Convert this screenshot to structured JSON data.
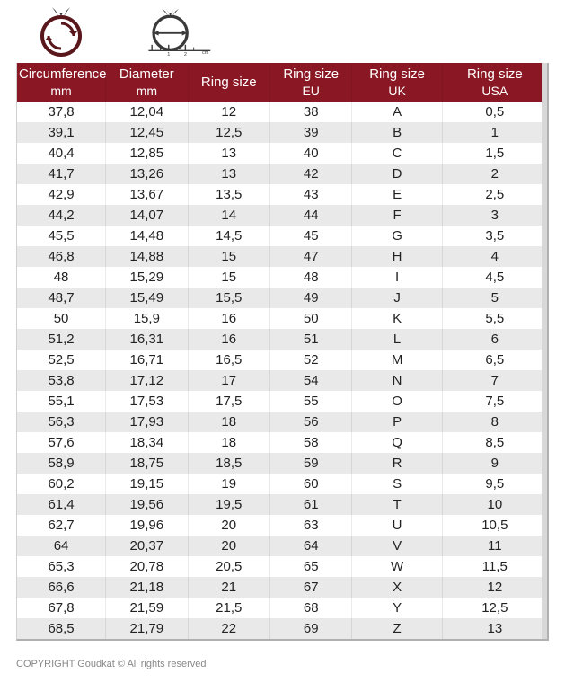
{
  "header": {
    "columns": [
      {
        "line1": "Circumference",
        "line2": "mm"
      },
      {
        "line1": "Diameter",
        "line2": "mm"
      },
      {
        "line1": "Ring size",
        "line2": ""
      },
      {
        "line1": "Ring size",
        "line2": "EU"
      },
      {
        "line1": "Ring size",
        "line2": "UK"
      },
      {
        "line1": "Ring size",
        "line2": "USA"
      }
    ],
    "bg_color": "#8a1824",
    "text_color": "#ffffff"
  },
  "stripe_colors": {
    "odd": "#ffffff",
    "even": "#e9e9e9"
  },
  "rows": [
    {
      "circ": "37,8",
      "diam": "12,04",
      "size": "12",
      "eu": "38",
      "uk": "A",
      "usa": "0,5"
    },
    {
      "circ": "39,1",
      "diam": "12,45",
      "size": "12,5",
      "eu": "39",
      "uk": "B",
      "usa": "1"
    },
    {
      "circ": "40,4",
      "diam": "12,85",
      "size": "13",
      "eu": "40",
      "uk": "C",
      "usa": "1,5"
    },
    {
      "circ": "41,7",
      "diam": "13,26",
      "size": "13",
      "eu": "42",
      "uk": "D",
      "usa": "2"
    },
    {
      "circ": "42,9",
      "diam": "13,67",
      "size": "13,5",
      "eu": "43",
      "uk": "E",
      "usa": "2,5"
    },
    {
      "circ": "44,2",
      "diam": "14,07",
      "size": "14",
      "eu": "44",
      "uk": "F",
      "usa": "3"
    },
    {
      "circ": "45,5",
      "diam": "14,48",
      "size": "14,5",
      "eu": "45",
      "uk": "G",
      "usa": "3,5"
    },
    {
      "circ": "46,8",
      "diam": "14,88",
      "size": "15",
      "eu": "47",
      "uk": "H",
      "usa": "4"
    },
    {
      "circ": "48",
      "diam": "15,29",
      "size": "15",
      "eu": "48",
      "uk": "I",
      "usa": "4,5"
    },
    {
      "circ": "48,7",
      "diam": "15,49",
      "size": "15,5",
      "eu": "49",
      "uk": "J",
      "usa": "5"
    },
    {
      "circ": "50",
      "diam": "15,9",
      "size": "16",
      "eu": "50",
      "uk": "K",
      "usa": "5,5"
    },
    {
      "circ": "51,2",
      "diam": "16,31",
      "size": "16",
      "eu": "51",
      "uk": "L",
      "usa": "6"
    },
    {
      "circ": "52,5",
      "diam": "16,71",
      "size": "16,5",
      "eu": "52",
      "uk": "M",
      "usa": "6,5"
    },
    {
      "circ": "53,8",
      "diam": "17,12",
      "size": "17",
      "eu": "54",
      "uk": "N",
      "usa": "7"
    },
    {
      "circ": "55,1",
      "diam": "17,53",
      "size": "17,5",
      "eu": "55",
      "uk": "O",
      "usa": "7,5"
    },
    {
      "circ": "56,3",
      "diam": "17,93",
      "size": "18",
      "eu": "56",
      "uk": "P",
      "usa": "8"
    },
    {
      "circ": "57,6",
      "diam": "18,34",
      "size": "18",
      "eu": "58",
      "uk": "Q",
      "usa": "8,5"
    },
    {
      "circ": "58,9",
      "diam": "18,75",
      "size": "18,5",
      "eu": "59",
      "uk": "R",
      "usa": "9"
    },
    {
      "circ": "60,2",
      "diam": "19,15",
      "size": "19",
      "eu": "60",
      "uk": "S",
      "usa": "9,5"
    },
    {
      "circ": "61,4",
      "diam": "19,56",
      "size": "19,5",
      "eu": "61",
      "uk": "T",
      "usa": "10"
    },
    {
      "circ": "62,7",
      "diam": "19,96",
      "size": "20",
      "eu": "63",
      "uk": "U",
      "usa": "10,5"
    },
    {
      "circ": "64",
      "diam": "20,37",
      "size": "20",
      "eu": "64",
      "uk": "V",
      "usa": "11"
    },
    {
      "circ": "65,3",
      "diam": "20,78",
      "size": "20,5",
      "eu": "65",
      "uk": "W",
      "usa": "11,5"
    },
    {
      "circ": "66,6",
      "diam": "21,18",
      "size": "21",
      "eu": "67",
      "uk": "X",
      "usa": "12"
    },
    {
      "circ": "67,8",
      "diam": "21,59",
      "size": "21,5",
      "eu": "68",
      "uk": "Y",
      "usa": "12,5"
    },
    {
      "circ": "68,5",
      "diam": "21,79",
      "size": "22",
      "eu": "69",
      "uk": "Z",
      "usa": "13"
    }
  ],
  "icons": {
    "ring_circumference": {
      "stroke": "#59161b",
      "fill_head": "#404040"
    },
    "ring_diameter": {
      "stroke": "#404040"
    }
  },
  "footer": {
    "copyright": "COPYRIGHT Goudkat ©   All rights reserved"
  }
}
